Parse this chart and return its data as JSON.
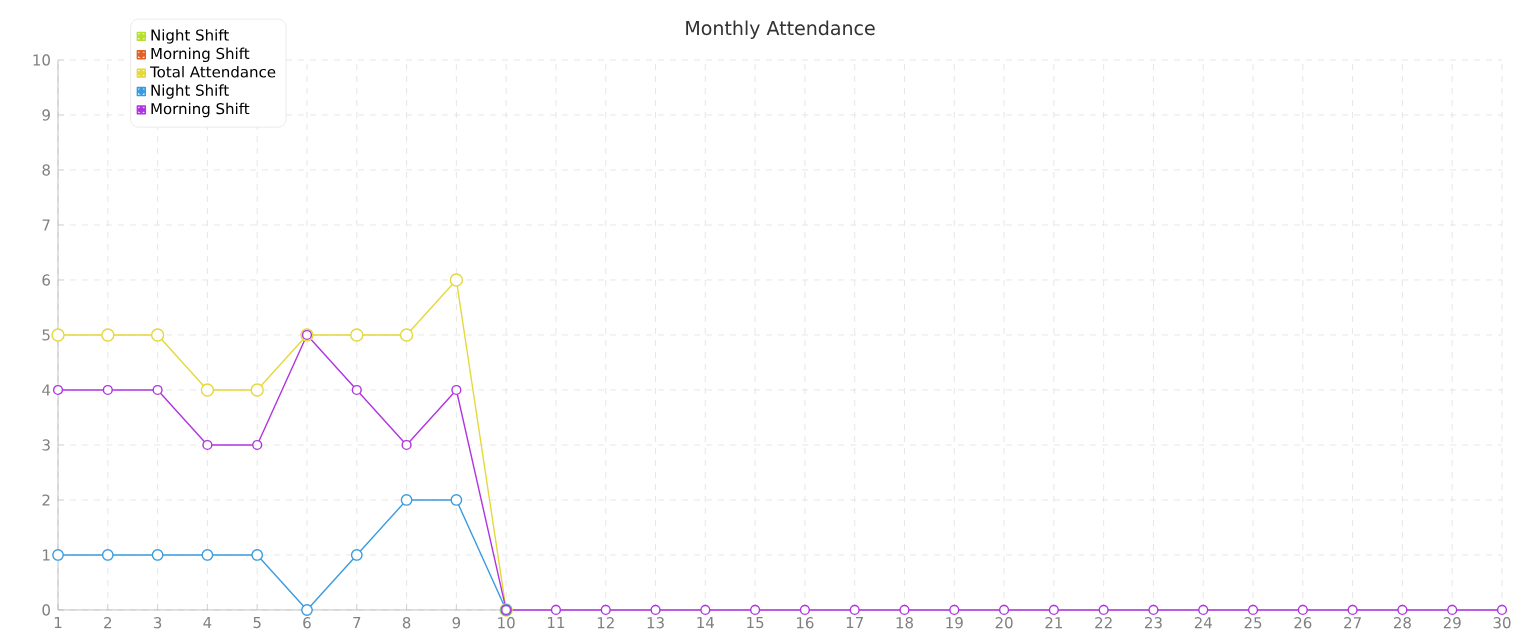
{
  "chart_data": {
    "type": "line",
    "title": "Monthly Attendance",
    "x": [
      1,
      2,
      3,
      4,
      5,
      6,
      7,
      8,
      9,
      10,
      11,
      12,
      13,
      14,
      15,
      16,
      17,
      18,
      19,
      20,
      21,
      22,
      23,
      24,
      25,
      26,
      27,
      28,
      29,
      30
    ],
    "series": [
      {
        "name": "Night Shift",
        "color": "#b5e02d",
        "values": [
          null,
          null,
          null,
          null,
          null,
          null,
          null,
          null,
          null,
          null,
          null,
          null,
          null,
          null,
          null,
          null,
          null,
          null,
          null,
          null,
          null,
          null,
          null,
          null,
          null,
          null,
          null,
          null,
          null,
          null
        ]
      },
      {
        "name": "Morning Shift",
        "color": "#e0622a",
        "values": [
          null,
          null,
          null,
          null,
          null,
          null,
          null,
          null,
          null,
          null,
          null,
          null,
          null,
          null,
          null,
          null,
          null,
          null,
          null,
          null,
          null,
          null,
          null,
          null,
          null,
          null,
          null,
          null,
          null,
          null
        ]
      },
      {
        "name": "Total Attendance",
        "color": "#e5d83a",
        "values": [
          5,
          5,
          5,
          4,
          4,
          5,
          5,
          5,
          6,
          0,
          null,
          null,
          null,
          null,
          null,
          null,
          null,
          null,
          null,
          null,
          null,
          null,
          null,
          null,
          null,
          null,
          null,
          null,
          null,
          null
        ]
      },
      {
        "name": "Night Shift",
        "color": "#3a9be0",
        "values": [
          1,
          1,
          1,
          1,
          1,
          0,
          1,
          2,
          2,
          0,
          null,
          null,
          null,
          null,
          null,
          null,
          null,
          null,
          null,
          null,
          null,
          null,
          null,
          null,
          null,
          null,
          null,
          null,
          null,
          null
        ]
      },
      {
        "name": "Morning Shift",
        "color": "#b034e0",
        "values": [
          4,
          4,
          4,
          3,
          3,
          5,
          4,
          3,
          4,
          0,
          0,
          0,
          0,
          0,
          0,
          0,
          0,
          0,
          0,
          0,
          0,
          0,
          0,
          0,
          0,
          0,
          0,
          0,
          0,
          0
        ]
      }
    ],
    "xlim": [
      1,
      30
    ],
    "xticks": [
      1,
      2,
      3,
      4,
      5,
      6,
      7,
      8,
      9,
      10,
      11,
      12,
      13,
      14,
      15,
      16,
      17,
      18,
      19,
      20,
      21,
      22,
      23,
      24,
      25,
      26,
      27,
      28,
      29,
      30
    ],
    "ylim": [
      0,
      10
    ],
    "yticks": [
      0,
      1,
      2,
      3,
      4,
      5,
      6,
      7,
      8,
      9,
      10
    ],
    "grid": true,
    "legend": "top left",
    "marker": "circle",
    "line_style": "solid"
  }
}
